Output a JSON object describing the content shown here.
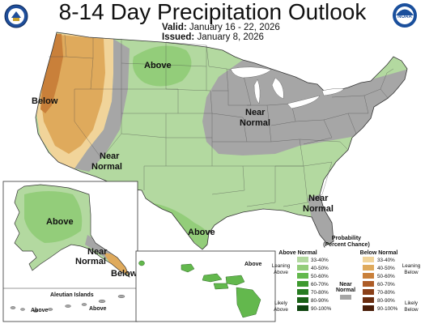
{
  "title": "8-14 Day Precipitation Outlook",
  "valid": {
    "label": "Valid:",
    "value": "January 16 - 22, 2026"
  },
  "issued": {
    "label": "Issued:",
    "value": "January 8, 2026"
  },
  "logos": {
    "left": "department-of-commerce-seal",
    "right": "noaa-logo",
    "noaa_text": "NOAA"
  },
  "map_labels": {
    "above_north": "Above",
    "below_west": "Below",
    "near_normal_west_1": "Near",
    "near_normal_west_2": "Normal",
    "near_normal_east_1": "Near",
    "near_normal_east_2": "Normal",
    "near_normal_se_1": "Near",
    "near_normal_se_2": "Normal",
    "above_south": "Above",
    "alaska_above": "Above",
    "alaska_near_1": "Near",
    "alaska_near_2": "Normal",
    "alaska_below": "Below",
    "aleutian_title": "Aleutian Islands",
    "aleutian_above_1": "Above",
    "aleutian_above_2": "Above",
    "hawaii_above": "Above"
  },
  "legend": {
    "title_1": "Probability",
    "title_2": "(Percent Chance)",
    "above_header": "Above Normal",
    "below_header": "Below Normal",
    "near_header_1": "Near",
    "near_header_2": "Normal",
    "leaning_above_1": "Leaning",
    "leaning_above_2": "Above",
    "likely_above_1": "Likely",
    "likely_above_2": "Above",
    "leaning_below_1": "Leaning",
    "leaning_below_2": "Below",
    "likely_below_1": "Likely",
    "likely_below_2": "Below",
    "above_bins": [
      {
        "range": "33-40%",
        "color": "#b3d9a0"
      },
      {
        "range": "40-50%",
        "color": "#93cd7a"
      },
      {
        "range": "50-60%",
        "color": "#63b84d"
      },
      {
        "range": "60-70%",
        "color": "#3e9a2f"
      },
      {
        "range": "70-80%",
        "color": "#277c21"
      },
      {
        "range": "80-90%",
        "color": "#1a6217"
      },
      {
        "range": "90-100%",
        "color": "#0f4510"
      }
    ],
    "below_bins": [
      {
        "range": "33-40%",
        "color": "#f1d49a"
      },
      {
        "range": "40-50%",
        "color": "#dfaa5c"
      },
      {
        "range": "50-60%",
        "color": "#c9803a"
      },
      {
        "range": "60-70%",
        "color": "#ad5c27"
      },
      {
        "range": "70-80%",
        "color": "#8a4019"
      },
      {
        "range": "80-90%",
        "color": "#6a2d10"
      },
      {
        "range": "90-100%",
        "color": "#4a1e0a"
      }
    ],
    "near_color": "#a6a6a6"
  }
}
